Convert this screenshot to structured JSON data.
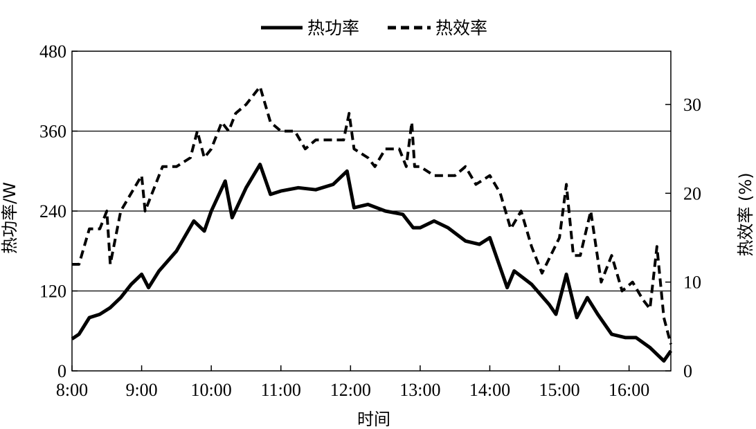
{
  "chart_data": {
    "type": "line",
    "title": "",
    "xlabel": "时间",
    "ylabel_left": "热功率/W",
    "ylabel_right": "热效率 (%)",
    "x_tick_labels": [
      "8:00",
      "9:00",
      "10:00",
      "11:00",
      "12:00",
      "13:00",
      "14:00",
      "15:00",
      "16:00"
    ],
    "x_range_hours": [
      8.0,
      16.6
    ],
    "ylim_left": [
      0,
      480
    ],
    "yticks_left": [
      0,
      120,
      240,
      360,
      480
    ],
    "ylim_right": [
      0,
      36
    ],
    "yticks_right": [
      0,
      10,
      20,
      30
    ],
    "grid_y_left": [
      120,
      240,
      360
    ],
    "legend_position": "top-center",
    "series": [
      {
        "name": "热功率",
        "axis": "left",
        "style": "solid",
        "x": [
          8.0,
          8.1,
          8.25,
          8.4,
          8.55,
          8.7,
          8.85,
          9.0,
          9.1,
          9.25,
          9.5,
          9.75,
          9.9,
          10.0,
          10.2,
          10.3,
          10.5,
          10.7,
          10.85,
          11.0,
          11.25,
          11.5,
          11.75,
          11.95,
          12.05,
          12.25,
          12.5,
          12.75,
          12.9,
          13.0,
          13.2,
          13.4,
          13.65,
          13.85,
          14.0,
          14.25,
          14.35,
          14.6,
          14.85,
          14.95,
          15.1,
          15.25,
          15.4,
          15.55,
          15.75,
          15.95,
          16.1,
          16.3,
          16.5,
          16.6
        ],
        "y": [
          48,
          55,
          80,
          85,
          95,
          110,
          130,
          145,
          125,
          150,
          180,
          225,
          210,
          240,
          285,
          230,
          275,
          310,
          265,
          270,
          275,
          272,
          280,
          300,
          245,
          250,
          240,
          235,
          215,
          215,
          225,
          215,
          195,
          190,
          200,
          125,
          150,
          130,
          100,
          85,
          145,
          80,
          110,
          85,
          55,
          50,
          50,
          35,
          15,
          30
        ]
      },
      {
        "name": "热效率",
        "axis": "right",
        "style": "dashed",
        "x": [
          8.0,
          8.1,
          8.25,
          8.4,
          8.5,
          8.55,
          8.7,
          8.85,
          9.0,
          9.05,
          9.15,
          9.3,
          9.5,
          9.7,
          9.8,
          9.9,
          10.0,
          10.15,
          10.25,
          10.35,
          10.5,
          10.7,
          10.85,
          11.0,
          11.2,
          11.35,
          11.5,
          11.75,
          11.9,
          11.98,
          12.05,
          12.25,
          12.35,
          12.5,
          12.7,
          12.8,
          12.88,
          12.92,
          13.0,
          13.2,
          13.35,
          13.5,
          13.65,
          13.8,
          14.0,
          14.15,
          14.3,
          14.45,
          14.6,
          14.75,
          15.0,
          15.1,
          15.2,
          15.3,
          15.45,
          15.6,
          15.75,
          15.9,
          16.05,
          16.2,
          16.3,
          16.4,
          16.5,
          16.6
        ],
        "y": [
          12,
          12,
          16,
          16,
          18,
          12,
          18,
          20,
          22,
          18,
          20,
          23,
          23,
          24,
          27,
          24,
          25,
          28,
          27,
          29,
          30,
          32,
          28,
          27,
          27,
          25,
          26,
          26,
          26,
          29,
          25,
          24,
          23,
          25,
          25,
          23,
          28,
          23,
          23,
          22,
          22,
          22,
          23,
          21,
          22,
          20,
          16,
          18,
          14,
          11,
          15,
          21,
          13,
          13,
          18,
          10,
          13,
          9,
          10,
          8,
          7,
          14,
          6,
          3
        ]
      }
    ]
  }
}
